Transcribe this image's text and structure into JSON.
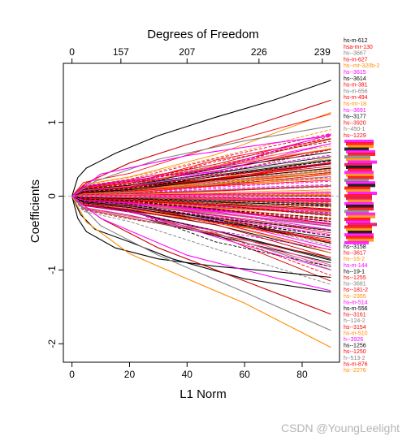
{
  "chart_data": {
    "type": "line",
    "xlabel": "L1 Norm",
    "ylabel": "Coefficients",
    "top_axis_title": "Degrees of Freedom",
    "xlim": [
      -3,
      93
    ],
    "ylim": [
      -2.25,
      1.8
    ],
    "x_ticks": [
      "0",
      "20",
      "40",
      "60",
      "80"
    ],
    "y_ticks": [
      "-2",
      "-1",
      "0",
      "1"
    ],
    "top_ticks": [
      {
        "x": 0,
        "label": "0"
      },
      {
        "x": 17,
        "label": "157"
      },
      {
        "x": 40,
        "label": "207"
      },
      {
        "x": 65,
        "label": "226"
      },
      {
        "x": 87,
        "label": "239"
      }
    ],
    "line_colors": [
      "#000000",
      "#ff0000",
      "#ff00ff",
      "#ff8c00",
      "#e00050",
      "#808080",
      "#cc0000",
      "#ff4090"
    ],
    "highlighted_paths": [
      {
        "color": "#000000",
        "points": [
          [
            0,
            0
          ],
          [
            2,
            0.25
          ],
          [
            5,
            0.38
          ],
          [
            15,
            0.58
          ],
          [
            30,
            0.82
          ],
          [
            50,
            1.07
          ],
          [
            70,
            1.3
          ],
          [
            90,
            1.57
          ]
        ]
      },
      {
        "color": "#cc0000",
        "points": [
          [
            0,
            0
          ],
          [
            5,
            0.18
          ],
          [
            20,
            0.45
          ],
          [
            40,
            0.7
          ],
          [
            60,
            0.92
          ],
          [
            90,
            1.3
          ]
        ]
      },
      {
        "color": "#808080",
        "points": [
          [
            0,
            0
          ],
          [
            8,
            0.2
          ],
          [
            30,
            0.5
          ],
          [
            60,
            0.75
          ],
          [
            90,
            0.95
          ]
        ]
      },
      {
        "color": "#000000",
        "points": [
          [
            0,
            0
          ],
          [
            2,
            -0.3
          ],
          [
            5,
            -0.48
          ],
          [
            15,
            -0.7
          ],
          [
            30,
            -0.85
          ],
          [
            50,
            -0.95
          ],
          [
            70,
            -1.02
          ],
          [
            90,
            -1.1
          ]
        ]
      },
      {
        "color": "#000000",
        "points": [
          [
            0,
            0
          ],
          [
            3,
            -0.25
          ],
          [
            8,
            -0.45
          ],
          [
            20,
            -0.62
          ],
          [
            35,
            -0.85
          ],
          [
            60,
            -1.12
          ],
          [
            90,
            -1.3
          ]
        ]
      },
      {
        "color": "#808080",
        "points": [
          [
            0,
            0
          ],
          [
            10,
            -0.4
          ],
          [
            30,
            -0.8
          ],
          [
            60,
            -1.3
          ],
          [
            90,
            -1.82
          ]
        ]
      },
      {
        "color": "#cc0000",
        "points": [
          [
            0,
            0
          ],
          [
            10,
            -0.3
          ],
          [
            30,
            -0.7
          ],
          [
            60,
            -1.15
          ],
          [
            90,
            -1.6
          ]
        ]
      },
      {
        "color": "#ff8c00",
        "points": [
          [
            0,
            0
          ],
          [
            5,
            -0.35
          ],
          [
            20,
            -0.78
          ],
          [
            40,
            -1.12
          ],
          [
            60,
            -1.45
          ],
          [
            90,
            -2.05
          ]
        ]
      },
      {
        "color": "#ff00ff",
        "points": [
          [
            0,
            0
          ],
          [
            10,
            -0.3
          ],
          [
            40,
            -0.8
          ],
          [
            70,
            -1.1
          ],
          [
            90,
            -1.28
          ]
        ]
      },
      {
        "color": "#ff00ff",
        "points": [
          [
            0,
            0
          ],
          [
            10,
            0.3
          ],
          [
            40,
            0.55
          ],
          [
            70,
            0.72
          ],
          [
            90,
            0.82
          ]
        ]
      }
    ],
    "gene_labels": [
      {
        "text": "hs-m-612",
        "color": "#000000"
      },
      {
        "text": "hsa-mr-130",
        "color": "#ff0000"
      },
      {
        "text": "hs--3667",
        "color": "#808080"
      },
      {
        "text": "hs-m-627",
        "color": "#ff0000"
      },
      {
        "text": "hs--mr-320b-2",
        "color": "#ff8c00"
      },
      {
        "text": "hs--3615",
        "color": "#ff00ff"
      },
      {
        "text": "hs--3614",
        "color": "#000000"
      },
      {
        "text": "hs-m-381",
        "color": "#ff0000"
      },
      {
        "text": "hs-m-656",
        "color": "#808080"
      },
      {
        "text": "hs-m-494",
        "color": "#ff0000"
      },
      {
        "text": "hs-mr-18",
        "color": "#ff8c00"
      },
      {
        "text": "hs--3691",
        "color": "#ff00ff"
      },
      {
        "text": "hs--3177",
        "color": "#000000"
      },
      {
        "text": "hs--3920",
        "color": "#ff0000"
      },
      {
        "text": "h--450-1",
        "color": "#808080"
      },
      {
        "text": "hs--1229",
        "color": "#ff0000"
      },
      {
        "text": "hs--3158",
        "color": "#000000"
      },
      {
        "text": "hs--3617",
        "color": "#ff0000"
      },
      {
        "text": "hs--16-2",
        "color": "#ff8c00"
      },
      {
        "text": "hs-m-144",
        "color": "#ff00ff"
      },
      {
        "text": "hs--19-1",
        "color": "#000000"
      },
      {
        "text": "hs--1255",
        "color": "#ff0000"
      },
      {
        "text": "hs--3681",
        "color": "#808080"
      },
      {
        "text": "hs--181-2",
        "color": "#ff0000"
      },
      {
        "text": "hs--2355",
        "color": "#ff8c00"
      },
      {
        "text": "hs-m-514",
        "color": "#ff00ff"
      },
      {
        "text": "hs-m-556",
        "color": "#000000"
      },
      {
        "text": "hs--3161",
        "color": "#ff0000"
      },
      {
        "text": "h--124-2",
        "color": "#808080"
      },
      {
        "text": "hs--3154",
        "color": "#ff0000"
      },
      {
        "text": "hs-m-510",
        "color": "#ff8c00"
      },
      {
        "text": "h--3926",
        "color": "#ff00ff"
      },
      {
        "text": "hs--1256",
        "color": "#000000"
      },
      {
        "text": "hs--1250",
        "color": "#ff0000"
      },
      {
        "text": "h--513-2",
        "color": "#808080"
      },
      {
        "text": "hs-m-876",
        "color": "#ff0000"
      },
      {
        "text": "hs--2276",
        "color": "#ff8c00"
      }
    ],
    "label_stack_extra": [
      "#ff00ff",
      "#ff0000",
      "#ff8c00",
      "#000000",
      "#ff00ff",
      "#ff0000",
      "#808080",
      "#ff8c00",
      "#ff00ff",
      "#e00050",
      "#000000",
      "#ff0000",
      "#ff00ff",
      "#ff8c00",
      "#ff0000",
      "#808080",
      "#ff00ff",
      "#000000",
      "#ff0000",
      "#ff8c00",
      "#ff00ff",
      "#ff0000",
      "#e00050",
      "#ff8c00",
      "#ff00ff",
      "#000000",
      "#ff0000",
      "#808080",
      "#ff00ff",
      "#ff8c00",
      "#ff0000",
      "#ff00ff",
      "#e00050",
      "#ff0000",
      "#ff8c00",
      "#000000",
      "#ff00ff",
      "#ff0000",
      "#ff8c00",
      "#ff00ff"
    ]
  },
  "watermark": "CSDN @YoungLeelight"
}
